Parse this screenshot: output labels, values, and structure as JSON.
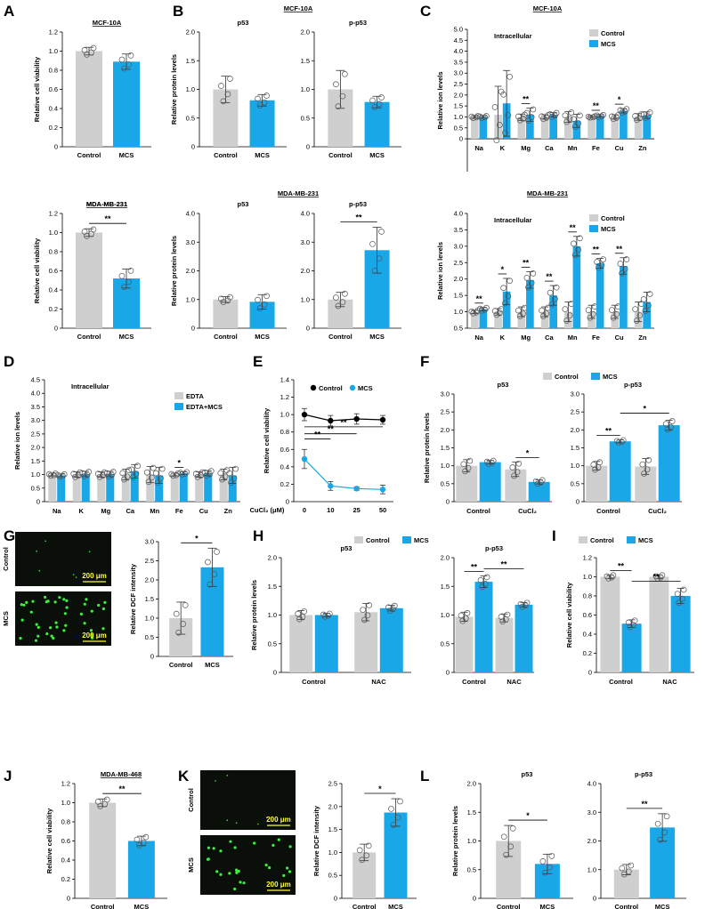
{
  "colors": {
    "gray": "#d0cfcf",
    "blue": "#1aa7e8",
    "black": "#000000",
    "micro_bg": "#0a0f0a",
    "micro_dot": "#3cf03c",
    "scalebar": "#ffff33"
  },
  "panels": {
    "A": "A",
    "B": "B",
    "C": "C",
    "D": "D",
    "E": "E",
    "F": "F",
    "G": "G",
    "H": "H",
    "I": "I",
    "J": "J",
    "K": "K",
    "L": "L"
  },
  "microscopy": {
    "G": {
      "labels": [
        "Control",
        "MCS"
      ],
      "scalebar": "200 μm"
    },
    "K": {
      "labels": [
        "Control",
        "MCS"
      ],
      "scalebar": "200 μm"
    }
  },
  "chart_data": [
    {
      "id": "A1",
      "type": "bar",
      "title": "MCF-10A",
      "ylabel": "Relative cell viability",
      "categories": [
        "Control",
        "MCS"
      ],
      "values": [
        1.0,
        0.89
      ],
      "errors": [
        0.04,
        0.08
      ],
      "ylim": [
        0,
        1.2
      ],
      "yticks": [
        "0",
        "0.2",
        "0.4",
        "0.6",
        "0.8",
        "1.0",
        "1.2"
      ],
      "sig": []
    },
    {
      "id": "A2",
      "type": "bar",
      "title": "MDA-MB-231",
      "ylabel": "Relative cell viability",
      "categories": [
        "Control",
        "MCS"
      ],
      "values": [
        1.0,
        0.52
      ],
      "errors": [
        0.04,
        0.1
      ],
      "ylim": [
        0,
        1.2
      ],
      "yticks": [
        "0",
        "0.2",
        "0.4",
        "0.6",
        "0.8",
        "1.0",
        "1.2"
      ],
      "sig": [
        {
          "text": "**",
          "from": 0,
          "to": 1
        }
      ]
    },
    {
      "id": "B1",
      "type": "bar",
      "title": "p53",
      "suptitle": "MCF-10A",
      "ylabel": "Relative protein levels",
      "categories": [
        "Control",
        "MCS"
      ],
      "values": [
        1.0,
        0.81
      ],
      "errors": [
        0.23,
        0.1
      ],
      "ylim": [
        0,
        2.0
      ],
      "yticks": [
        "0",
        "0.5",
        "1.0",
        "1.5",
        "2.0"
      ],
      "sig": []
    },
    {
      "id": "B2",
      "type": "bar",
      "title": "p-p53",
      "categories": [
        "Control",
        "MCS"
      ],
      "values": [
        1.0,
        0.78
      ],
      "errors": [
        0.33,
        0.1
      ],
      "ylim": [
        0,
        2.0
      ],
      "yticks": [
        "0",
        "0.5",
        "1.0",
        "1.5",
        "2.0"
      ],
      "sig": []
    },
    {
      "id": "B3",
      "type": "bar",
      "title": "p53",
      "suptitle": "MDA-MB-231",
      "ylabel": "Relative protein levels",
      "categories": [
        "Control",
        "MCS"
      ],
      "values": [
        1.0,
        0.92
      ],
      "errors": [
        0.1,
        0.25
      ],
      "ylim": [
        0,
        4.0
      ],
      "yticks": [
        "0",
        "1.0",
        "2.0",
        "3.0",
        "4.0"
      ],
      "sig": []
    },
    {
      "id": "B4",
      "type": "bar",
      "title": "p-p53",
      "categories": [
        "Control",
        "MCS"
      ],
      "values": [
        1.0,
        2.72
      ],
      "errors": [
        0.25,
        0.8
      ],
      "ylim": [
        0,
        4.0
      ],
      "yticks": [
        "0",
        "1.0",
        "2.0",
        "3.0",
        "4.0"
      ],
      "sig": [
        {
          "text": "**",
          "from": 0,
          "to": 1
        }
      ]
    },
    {
      "id": "C1",
      "type": "bar",
      "title": "Intracellular",
      "suptitle": "MCF-10A",
      "ylabel": "Relative ion levels",
      "categories": [
        "Na",
        "K",
        "Mg",
        "Ca",
        "Mn",
        "Fe",
        "Cu",
        "Zn"
      ],
      "series": [
        {
          "name": "Control",
          "values": [
            1.0,
            1.1,
            0.98,
            1.0,
            1.0,
            1.0,
            1.0,
            1.0
          ],
          "errors": [
            0.05,
            1.3,
            0.15,
            0.1,
            0.25,
            0.03,
            0.1,
            0.15
          ]
        },
        {
          "name": "MCS",
          "values": [
            1.0,
            1.62,
            1.1,
            1.1,
            0.82,
            1.05,
            1.28,
            1.08
          ],
          "errors": [
            0.05,
            1.5,
            0.3,
            0.1,
            0.3,
            0.05,
            0.1,
            0.15
          ]
        }
      ],
      "ylim": [
        -1.5,
        5.0
      ],
      "yticks": [
        "0",
        "0.5",
        "1.0",
        "1.5",
        "2.0",
        "2.5",
        "3.0",
        "3.5",
        "4.0",
        "4.5",
        "5.0"
      ],
      "sig": [
        {
          "text": "**",
          "cat": 2
        },
        {
          "text": "**",
          "cat": 5
        },
        {
          "text": "*",
          "cat": 6
        }
      ]
    },
    {
      "id": "C2",
      "type": "bar",
      "title": "Intracellular",
      "suptitle": "MDA-MB-231",
      "ylabel": "Relative ion levels",
      "categories": [
        "Na",
        "K",
        "Mg",
        "Ca",
        "Mn",
        "Fe",
        "Cu",
        "Zn"
      ],
      "series": [
        {
          "name": "Control",
          "values": [
            1.0,
            1.0,
            1.0,
            1.0,
            1.0,
            1.0,
            1.0,
            1.0
          ],
          "errors": [
            0.05,
            0.1,
            0.15,
            0.15,
            0.3,
            0.2,
            0.2,
            0.3
          ]
        },
        {
          "name": "MCS",
          "values": [
            1.08,
            1.62,
            1.97,
            1.5,
            3.0,
            2.48,
            2.4,
            1.3
          ]
        },
        {
          "errors_for": "MCS",
          "errors": [
            0.05,
            0.4,
            0.25,
            0.3,
            0.3,
            0.15,
            0.25,
            0.3
          ]
        }
      ],
      "ylim": [
        0.5,
        4.0
      ],
      "yticks": [
        "0.5",
        "1.0",
        "1.5",
        "2.0",
        "2.5",
        "3.0",
        "3.5",
        "4.0"
      ],
      "sig": [
        {
          "text": "**",
          "cat": 0
        },
        {
          "text": "*",
          "cat": 1
        },
        {
          "text": "**",
          "cat": 2
        },
        {
          "text": "**",
          "cat": 3
        },
        {
          "text": "**",
          "cat": 4
        },
        {
          "text": "**",
          "cat": 5
        },
        {
          "text": "**",
          "cat": 6
        }
      ]
    },
    {
      "id": "D",
      "type": "bar",
      "title": "Intracellular",
      "ylabel": "Relative ion levels",
      "categories": [
        "Na",
        "K",
        "Mg",
        "Ca",
        "Mn",
        "Fe",
        "Cu",
        "Zn"
      ],
      "series": [
        {
          "name": "EDTA",
          "values": [
            1.0,
            1.0,
            1.0,
            1.0,
            1.0,
            1.0,
            1.0,
            1.0
          ],
          "errors": [
            0.05,
            0.1,
            0.1,
            0.2,
            0.3,
            0.05,
            0.1,
            0.2
          ]
        },
        {
          "name": "EDTA+MCS",
          "values": [
            0.97,
            1.02,
            1.02,
            1.12,
            0.97,
            1.05,
            1.05,
            0.97
          ],
          "errors": [
            0.05,
            0.1,
            0.1,
            0.25,
            0.3,
            0.05,
            0.1,
            0.3
          ]
        }
      ],
      "ylim": [
        0,
        4.5
      ],
      "yticks": [
        "0",
        "0.5",
        "1.0",
        "1.5",
        "2.0",
        "2.5",
        "3.0",
        "3.5",
        "4.0",
        "4.5"
      ],
      "sig": [
        {
          "text": "*",
          "cat": 5
        }
      ]
    },
    {
      "id": "E",
      "type": "line",
      "ylabel": "Relative cell viability",
      "xlabel": "CuCl₂ (μM)",
      "x": [
        "0",
        "10",
        "25",
        "50"
      ],
      "series": [
        {
          "name": "Control",
          "values": [
            1.0,
            0.93,
            0.95,
            0.94
          ],
          "errors": [
            0.07,
            0.06,
            0.06,
            0.05
          ]
        },
        {
          "name": "MCS",
          "values": [
            0.49,
            0.18,
            0.15,
            0.14
          ],
          "errors": [
            0.11,
            0.05,
            0.02,
            0.05
          ]
        }
      ],
      "ylim": [
        0,
        1.4
      ],
      "yticks": [
        "0",
        "0.2",
        "0.4",
        "0.6",
        "0.8",
        "1.0",
        "1.2",
        "1.4"
      ],
      "sig": [
        "**",
        "**",
        "**"
      ]
    },
    {
      "id": "F1",
      "type": "bar",
      "title": "p53",
      "ylabel": "Relative protein levels",
      "categories": [
        "Control",
        "CuCl₂"
      ],
      "series": [
        {
          "name": "Control",
          "values": [
            1.0,
            0.9
          ],
          "errors": [
            0.17,
            0.2
          ]
        },
        {
          "name": "MCS",
          "values": [
            1.1,
            0.55
          ],
          "errors": [
            0.05,
            0.06
          ]
        }
      ],
      "ylim": [
        0,
        3.0
      ],
      "yticks": [
        "0",
        "0.5",
        "1.0",
        "1.5",
        "2.0",
        "2.5",
        "3.0"
      ],
      "sig": [
        {
          "text": "*",
          "cat": 1
        }
      ]
    },
    {
      "id": "F2",
      "type": "bar",
      "title": "p-p53",
      "categories": [
        "Control",
        "CuCl₂"
      ],
      "series": [
        {
          "name": "Control",
          "values": [
            1.0,
            0.98
          ],
          "errors": [
            0.12,
            0.22
          ]
        },
        {
          "name": "MCS",
          "values": [
            1.68,
            2.13
          ],
          "errors": [
            0.04,
            0.14
          ]
        }
      ],
      "ylim": [
        0,
        3.0
      ],
      "yticks": [
        "0",
        "0.5",
        "1.0",
        "1.5",
        "2.0",
        "2.5",
        "3.0"
      ],
      "sig": [
        {
          "text": "**",
          "cat": 0
        },
        {
          "text": "*",
          "span": true
        }
      ]
    },
    {
      "id": "G",
      "type": "bar",
      "ylabel": "Relative DCF intensity",
      "categories": [
        "Control",
        "MCS"
      ],
      "values": [
        1.0,
        2.33
      ],
      "errors": [
        0.42,
        0.5
      ],
      "ylim": [
        0,
        3.0
      ],
      "yticks": [
        "0",
        "0.5",
        "1.0",
        "1.5",
        "2.0",
        "2.5",
        "3.0"
      ],
      "sig": [
        {
          "text": "*",
          "from": 0,
          "to": 1
        }
      ]
    },
    {
      "id": "H1",
      "type": "bar",
      "title": "p53",
      "ylabel": "Relative protein levels",
      "categories": [
        "Control",
        "NAC"
      ],
      "series": [
        {
          "name": "Control",
          "values": [
            1.0,
            1.05
          ],
          "errors": [
            0.08,
            0.15
          ]
        },
        {
          "name": "MCS",
          "values": [
            1.0,
            1.12
          ],
          "errors": [
            0.03,
            0.05
          ]
        }
      ],
      "ylim": [
        0,
        2.0
      ],
      "yticks": [
        "0",
        "0.5",
        "1.0",
        "1.5",
        "2.0"
      ],
      "sig": []
    },
    {
      "id": "H2",
      "type": "bar",
      "title": "p-p53",
      "categories": [
        "Control",
        "NAC"
      ],
      "series": [
        {
          "name": "Control",
          "values": [
            0.97,
            0.95
          ],
          "errors": [
            0.08,
            0.07
          ]
        },
        {
          "name": "MCS",
          "values": [
            1.58,
            1.18
          ],
          "errors": [
            0.1,
            0.04
          ]
        }
      ],
      "ylim": [
        0,
        2.0
      ],
      "yticks": [
        "0",
        "0.5",
        "1.0",
        "1.5",
        "2.0"
      ],
      "sig": [
        {
          "text": "**",
          "cat": 0
        },
        {
          "text": "**",
          "span": true
        }
      ]
    },
    {
      "id": "I",
      "type": "bar",
      "ylabel": "Relative cell viability",
      "categories": [
        "Control",
        "NAC"
      ],
      "series": [
        {
          "name": "Control",
          "values": [
            1.0,
            1.0
          ],
          "errors": [
            0.02,
            0.02
          ]
        },
        {
          "name": "MCS",
          "values": [
            0.51,
            0.8
          ],
          "errors": [
            0.04,
            0.08
          ]
        }
      ],
      "ylim": [
        0,
        1.2
      ],
      "yticks": [
        "0",
        "0.2",
        "0.4",
        "0.6",
        "0.8",
        "1.0",
        "1.2"
      ],
      "sig": [
        {
          "text": "**",
          "cat": 0
        },
        {
          "text": "**",
          "span": true
        }
      ]
    },
    {
      "id": "J",
      "type": "bar",
      "title": "MDA-MB-468",
      "ylabel": "Relative cell viability",
      "categories": [
        "Control",
        "MCS"
      ],
      "values": [
        1.0,
        0.6
      ],
      "errors": [
        0.04,
        0.05
      ],
      "ylim": [
        0,
        1.2
      ],
      "yticks": [
        "0",
        "0.2",
        "0.4",
        "0.6",
        "0.8",
        "1.0",
        "1.2"
      ],
      "sig": [
        {
          "text": "**",
          "from": 0,
          "to": 1
        }
      ]
    },
    {
      "id": "K",
      "type": "bar",
      "ylabel": "Relative DCF intensity",
      "categories": [
        "Control",
        "MCS"
      ],
      "values": [
        1.0,
        1.87
      ],
      "errors": [
        0.18,
        0.3
      ],
      "ylim": [
        0,
        2.5
      ],
      "yticks": [
        "0",
        "0.5",
        "1.0",
        "1.5",
        "2.0",
        "2.5"
      ],
      "sig": [
        {
          "text": "*",
          "from": 0,
          "to": 1
        }
      ]
    },
    {
      "id": "L1",
      "type": "bar",
      "title": "p53",
      "ylabel": "Relative protein levels",
      "categories": [
        "Control",
        "MCS"
      ],
      "values": [
        1.0,
        0.6
      ],
      "errors": [
        0.27,
        0.17
      ],
      "ylim": [
        0,
        2.0
      ],
      "yticks": [
        "0",
        "0.5",
        "1.0",
        "1.5",
        "2.0"
      ],
      "sig": [
        {
          "text": "*",
          "from": 0,
          "to": 1
        }
      ]
    },
    {
      "id": "L2",
      "type": "bar",
      "title": "p-p53",
      "categories": [
        "Control",
        "MCS"
      ],
      "values": [
        1.0,
        2.47
      ],
      "errors": [
        0.18,
        0.48
      ],
      "ylim": [
        0,
        4.0
      ],
      "yticks": [
        "0",
        "1.0",
        "2.0",
        "3.0",
        "4.0"
      ],
      "sig": [
        {
          "text": "**",
          "from": 0,
          "to": 1
        }
      ]
    }
  ],
  "legends": {
    "C1": [
      "Control",
      "MCS"
    ],
    "C2": [
      "Control",
      "MCS"
    ],
    "D": [
      "EDTA",
      "EDTA+MCS"
    ],
    "E": [
      "Control",
      "MCS"
    ],
    "F": [
      "Control",
      "MCS"
    ],
    "H": [
      "Control",
      "MCS"
    ],
    "I": [
      "Control",
      "MCS"
    ]
  }
}
